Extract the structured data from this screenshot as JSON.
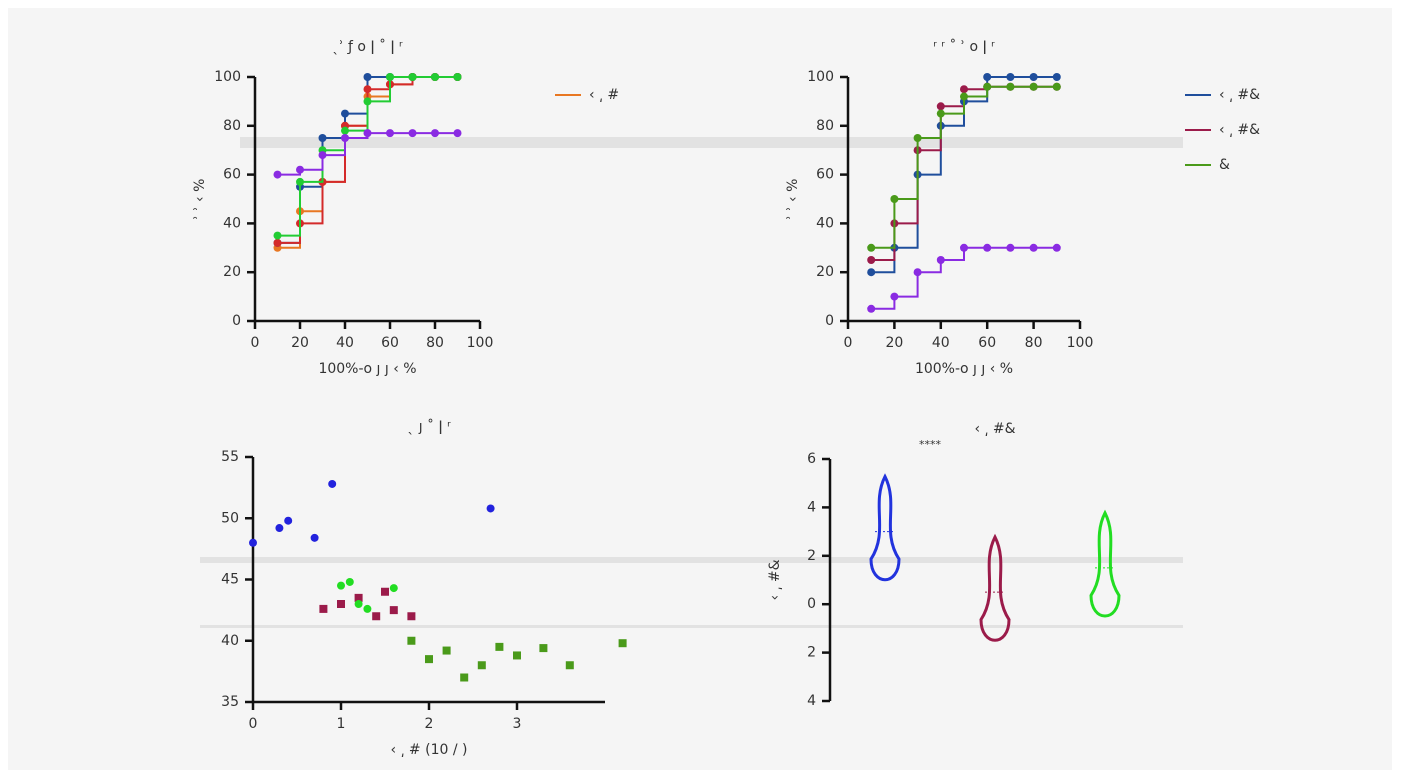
{
  "chart_data": [
    {
      "type": "line",
      "title": "ˎʾ ƒ ο ǀ ˚ ǀ ʳ",
      "x_label": "100%-ο ȷ ȷ ‹ %",
      "y_label": "ʾ ʾ ‹ %",
      "xlim": [
        0,
        100
      ],
      "xticks": [
        0,
        20,
        40,
        60,
        80,
        100
      ],
      "ylim": [
        0,
        100
      ],
      "yticks": [
        0,
        20,
        40,
        60,
        80,
        100
      ],
      "x": [
        10,
        20,
        30,
        40,
        50,
        60,
        70,
        80,
        90
      ],
      "series": [
        {
          "name": "‹ ͵ #",
          "color": "#e87722",
          "values": [
            30,
            45,
            57,
            80,
            92,
            97,
            100,
            100,
            100
          ]
        },
        {
          "color": "#1f4e9c",
          "values": [
            32,
            55,
            75,
            85,
            100,
            100,
            100,
            100,
            100
          ]
        },
        {
          "color": "#d42a2a",
          "values": [
            32,
            40,
            57,
            80,
            95,
            97,
            100,
            100,
            100
          ]
        },
        {
          "color": "#22cc33",
          "values": [
            35,
            57,
            70,
            78,
            90,
            100,
            100,
            100,
            100
          ]
        },
        {
          "color": "#8a2be2",
          "values": [
            60,
            62,
            68,
            75,
            77,
            77,
            77,
            77,
            77
          ]
        }
      ]
    },
    {
      "type": "line",
      "title": "ʳ ʳ ˚ ʾ ο ǀ ʳ",
      "x_label": "100%-ο ȷ ȷ ‹ %",
      "y_label": "ʾ ʾ ‹ %",
      "xlim": [
        0,
        100
      ],
      "xticks": [
        0,
        20,
        40,
        60,
        80,
        100
      ],
      "ylim": [
        0,
        100
      ],
      "yticks": [
        0,
        20,
        40,
        60,
        80,
        100
      ],
      "x": [
        10,
        20,
        30,
        40,
        50,
        60,
        70,
        80,
        90
      ],
      "series": [
        {
          "name": "‹ ͵ #&",
          "color": "#1f4e9c",
          "values": [
            20,
            30,
            60,
            80,
            90,
            100,
            100,
            100,
            100
          ]
        },
        {
          "name": "‹ ͵ #& ",
          "color": "#9b1b4a",
          "values": [
            25,
            40,
            70,
            88,
            95,
            96,
            96,
            96,
            96
          ]
        },
        {
          "name": "& ",
          "color": "#4a9a1a",
          "values": [
            30,
            50,
            75,
            85,
            92,
            96,
            96,
            96,
            96
          ]
        },
        {
          "color": "#8a2be2",
          "values": [
            5,
            10,
            20,
            25,
            30,
            30,
            30,
            30,
            30
          ]
        }
      ]
    },
    {
      "type": "scatter",
      "title": "ˎ ȷ ˚ ǀ ʳ",
      "x_label": "‹ ͵ # (10 / )",
      "xlim": [
        0,
        4
      ],
      "xticks": [
        0,
        1,
        2,
        3
      ],
      "ylim": [
        35,
        55
      ],
      "yticks": [
        35,
        40,
        45,
        50,
        55
      ],
      "series": [
        {
          "color": "#2222dd",
          "shape": "circle",
          "x": [
            0,
            0.3,
            0.4,
            0.7,
            0.9,
            2.7
          ],
          "values": [
            48,
            49.2,
            49.8,
            48.4,
            52.8,
            50.8
          ]
        },
        {
          "color": "#9b1b4a",
          "shape": "square",
          "x": [
            0.8,
            1.0,
            1.2,
            1.4,
            1.5,
            1.6,
            1.8
          ],
          "values": [
            42.6,
            43,
            43.5,
            42,
            44,
            42.5,
            42
          ]
        },
        {
          "color": "#22dd22",
          "shape": "circle",
          "x": [
            1.0,
            1.1,
            1.2,
            1.3,
            1.6
          ],
          "values": [
            44.5,
            44.8,
            43,
            42.6,
            44.3
          ]
        },
        {
          "color": "#4a9a1a",
          "shape": "square",
          "x": [
            1.8,
            2.0,
            2.2,
            2.4,
            2.6,
            2.8,
            3.0,
            3.3,
            3.6,
            4.2
          ],
          "values": [
            40,
            38.5,
            39.2,
            37,
            38,
            39.5,
            38.8,
            39.4,
            38,
            39.8
          ]
        }
      ]
    },
    {
      "type": "violin",
      "title": "‹ ͵ #&",
      "annotation": "****",
      "y_label": "‹ ͵ #&",
      "ylim": [
        -4,
        6
      ],
      "yticks": [
        6,
        4,
        2,
        0,
        {
          "value": -2,
          "label": "2"
        },
        {
          "value": -4,
          "label": "4"
        }
      ],
      "categories": [
        null,
        null,
        null
      ],
      "values": [
        3,
        0.5,
        1.5
      ],
      "colors": [
        "#2233dd",
        "#9b1b4a",
        "#22dd22"
      ]
    }
  ]
}
